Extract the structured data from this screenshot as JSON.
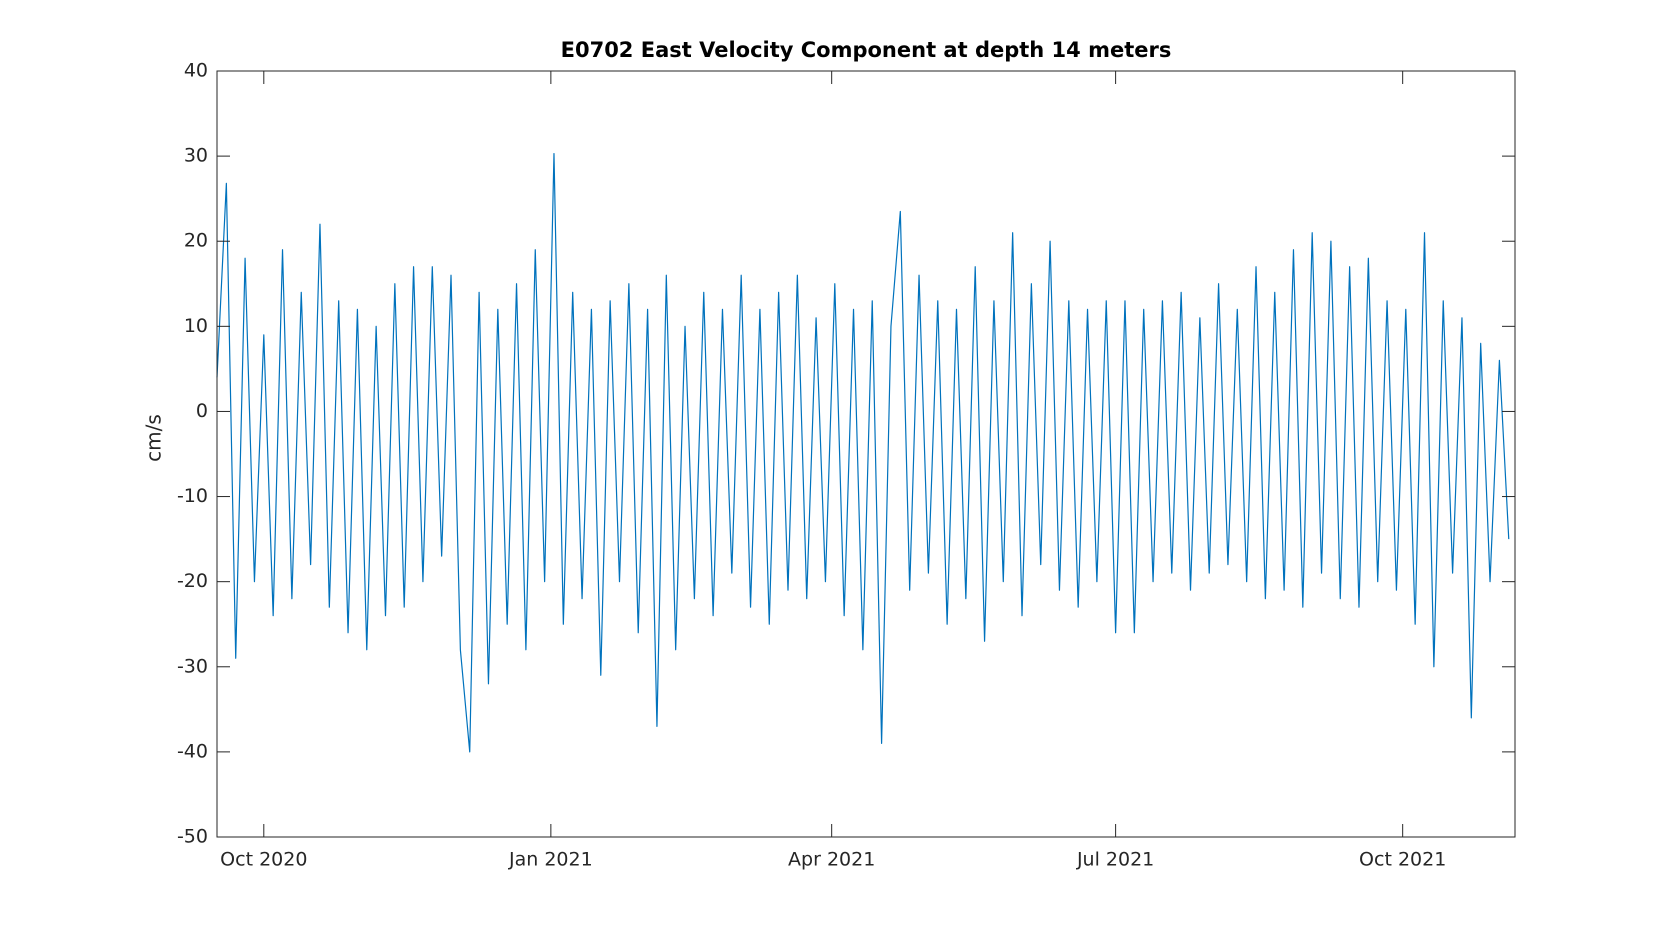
{
  "chart_data": {
    "type": "line",
    "title": "E0702 East Velocity Component at depth 14 meters",
    "ylabel": "cm/s",
    "color": "#0072bd",
    "x": [
      "2020-09-16",
      "2020-09-19",
      "2020-09-22",
      "2020-09-25",
      "2020-09-28",
      "2020-10-01",
      "2020-10-04",
      "2020-10-07",
      "2020-10-10",
      "2020-10-13",
      "2020-10-16",
      "2020-10-19",
      "2020-10-22",
      "2020-10-25",
      "2020-10-28",
      "2020-10-31",
      "2020-11-03",
      "2020-11-06",
      "2020-11-09",
      "2020-11-12",
      "2020-11-15",
      "2020-11-18",
      "2020-11-21",
      "2020-11-24",
      "2020-11-27",
      "2020-11-30",
      "2020-12-03",
      "2020-12-06",
      "2020-12-09",
      "2020-12-12",
      "2020-12-15",
      "2020-12-18",
      "2020-12-21",
      "2020-12-24",
      "2020-12-27",
      "2020-12-30",
      "2021-01-02",
      "2021-01-05",
      "2021-01-08",
      "2021-01-11",
      "2021-01-14",
      "2021-01-17",
      "2021-01-20",
      "2021-01-23",
      "2021-01-26",
      "2021-01-29",
      "2021-02-01",
      "2021-02-04",
      "2021-02-07",
      "2021-02-10",
      "2021-02-13",
      "2021-02-16",
      "2021-02-19",
      "2021-02-22",
      "2021-02-25",
      "2021-02-28",
      "2021-03-03",
      "2021-03-06",
      "2021-03-09",
      "2021-03-12",
      "2021-03-15",
      "2021-03-18",
      "2021-03-21",
      "2021-03-24",
      "2021-03-27",
      "2021-03-30",
      "2021-04-02",
      "2021-04-05",
      "2021-04-08",
      "2021-04-11",
      "2021-04-14",
      "2021-04-17",
      "2021-04-20",
      "2021-04-23",
      "2021-04-26",
      "2021-04-29",
      "2021-05-02",
      "2021-05-05",
      "2021-05-08",
      "2021-05-11",
      "2021-05-14",
      "2021-05-17",
      "2021-05-20",
      "2021-05-23",
      "2021-05-26",
      "2021-05-29",
      "2021-06-01",
      "2021-06-04",
      "2021-06-07",
      "2021-06-10",
      "2021-06-13",
      "2021-06-16",
      "2021-06-19",
      "2021-06-22",
      "2021-06-25",
      "2021-06-28",
      "2021-07-01",
      "2021-07-04",
      "2021-07-07",
      "2021-07-10",
      "2021-07-13",
      "2021-07-16",
      "2021-07-19",
      "2021-07-22",
      "2021-07-25",
      "2021-07-28",
      "2021-07-31",
      "2021-08-03",
      "2021-08-06",
      "2021-08-09",
      "2021-08-12",
      "2021-08-15",
      "2021-08-18",
      "2021-08-21",
      "2021-08-24",
      "2021-08-27",
      "2021-08-30",
      "2021-09-02",
      "2021-09-05",
      "2021-09-08",
      "2021-09-11",
      "2021-09-14",
      "2021-09-17",
      "2021-09-20",
      "2021-09-23",
      "2021-09-26",
      "2021-09-29",
      "2021-10-02",
      "2021-10-05",
      "2021-10-08",
      "2021-10-11",
      "2021-10-14",
      "2021-10-17",
      "2021-10-20",
      "2021-10-23",
      "2021-10-26",
      "2021-10-29",
      "2021-11-01",
      "2021-11-04"
    ],
    "values": [
      4,
      26.8,
      -29,
      18,
      -20,
      9,
      -24,
      19,
      -22,
      14,
      -18,
      22,
      -23,
      13,
      -26,
      12,
      -28,
      10,
      -24,
      15,
      -23,
      17,
      -20,
      17,
      -17,
      16,
      -28,
      -40,
      14,
      -32,
      12,
      -25,
      15,
      -28,
      19,
      -20,
      30.3,
      -25,
      14,
      -22,
      12,
      -31,
      13,
      -20,
      15,
      -26,
      12,
      -37,
      16,
      -28,
      10,
      -22,
      14,
      -24,
      12,
      -19,
      16,
      -23,
      12,
      -25,
      14,
      -21,
      16,
      -22,
      11,
      -20,
      15,
      -24,
      12,
      -28,
      13,
      -39,
      10,
      23.5,
      -21,
      16,
      -19,
      13,
      -25,
      12,
      -22,
      17,
      -27,
      13,
      -20,
      21,
      -24,
      15,
      -18,
      20,
      -21,
      13,
      -23,
      12,
      -20,
      13,
      -26,
      13,
      -26,
      12,
      -20,
      13,
      -19,
      14,
      -21,
      11,
      -19,
      15,
      -18,
      12,
      -20,
      17,
      -22,
      14,
      -21,
      19,
      -23,
      21,
      -19,
      20,
      -22,
      17,
      -23,
      18,
      -20,
      13,
      -21,
      12,
      -25,
      21,
      -30,
      13,
      -19,
      11,
      -36,
      8,
      -20,
      6,
      -15
    ],
    "xlim": [
      "2020-09-16",
      "2021-11-06"
    ],
    "xticks": [
      {
        "value": "2020-10-01",
        "label": "Oct 2020"
      },
      {
        "value": "2021-01-01",
        "label": "Jan 2021"
      },
      {
        "value": "2021-04-01",
        "label": "Apr 2021"
      },
      {
        "value": "2021-07-01",
        "label": "Jul 2021"
      },
      {
        "value": "2021-10-01",
        "label": "Oct 2021"
      }
    ],
    "ylim": [
      -50,
      40
    ],
    "yticks": [
      -50,
      -40,
      -30,
      -20,
      -10,
      0,
      10,
      20,
      30,
      40
    ]
  }
}
